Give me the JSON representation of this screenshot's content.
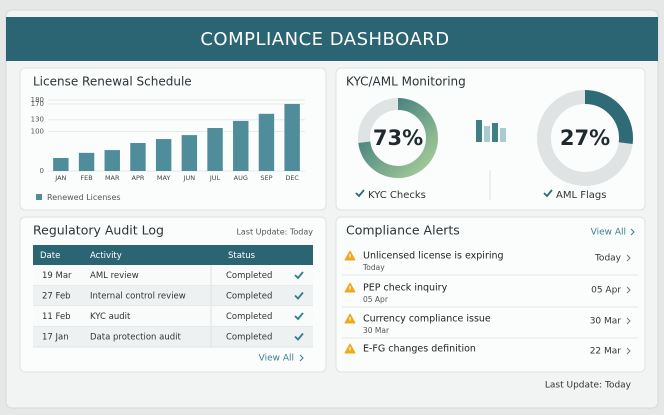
{
  "header": {
    "title": "COMPLIANCE DASHBOARD"
  },
  "chart_data": {
    "type": "bar",
    "title": "License Renewal Schedule",
    "categories": [
      "JAN",
      "FEB",
      "MAR",
      "APR",
      "MAY",
      "JUN",
      "JUL",
      "AUG",
      "SEP",
      "DEC"
    ],
    "series": [
      {
        "name": "Renewed Licenses",
        "color": "#4f8d9b",
        "values": [
          33,
          46,
          53,
          71,
          81,
          91,
          109,
          127,
          145,
          170
        ]
      }
    ],
    "ylim": [
      0,
      180
    ],
    "yticks": [
      0,
      100,
      130,
      170,
      180
    ],
    "grid": true
  },
  "kyc": {
    "title": "KYC/AML Monitoring",
    "gauges": [
      {
        "name": "KYC Checks",
        "value": 73,
        "value_label": "73%",
        "color": "#3f7f86"
      },
      {
        "name": "AML Flags",
        "value": 27,
        "value_label": "27%",
        "color": "#2f6b77"
      }
    ]
  },
  "audit_log": {
    "title": "Regulatory Audit Log",
    "last_update": "Last Update: Today",
    "columns": [
      "Date",
      "Activity",
      "Status"
    ],
    "rows": [
      [
        "19 Mar",
        "AML review",
        "Completed"
      ],
      [
        "27 Feb",
        "Internal control review",
        "Completed"
      ],
      [
        "11 Feb",
        "KYC audit",
        "Completed"
      ],
      [
        "17 Jan",
        "Data protection audit",
        "Completed"
      ]
    ],
    "view_all": "View All"
  },
  "alerts": {
    "title": "Compliance Alerts",
    "view_all": "View All",
    "items": [
      {
        "title": "Unlicensed license is expiring",
        "subtitle": "Today",
        "date": "Today"
      },
      {
        "title": "PEP check inquiry",
        "subtitle": "05 Apr",
        "date": "05 Apr"
      },
      {
        "title": "Currency compliance issue",
        "subtitle": "30 Mar",
        "date": "30 Mar"
      },
      {
        "title": "E-FG changes definition",
        "date": "22 Mar"
      }
    ]
  },
  "footer": {
    "last_update": "Last Update: Today"
  }
}
